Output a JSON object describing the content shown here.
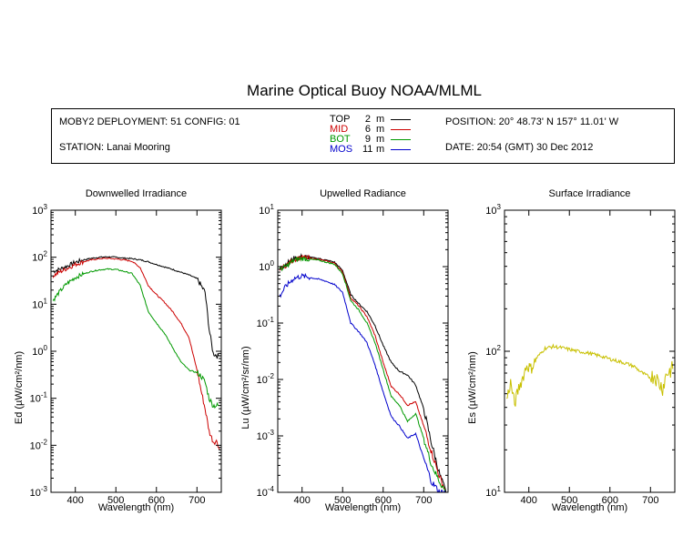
{
  "title": "Marine Optical Buoy NOAA/MLML",
  "info": {
    "deployment": "MOBY2 DEPLOYMENT: 51 CONFIG: 01",
    "station": "STATION: Lanai Mooring",
    "position": "POSITION: 20° 48.73' N   157° 11.01' W",
    "date": "DATE: 20:54 (GMT) 30 Dec 2012",
    "depths": [
      {
        "name": "TOP",
        "depth": "2",
        "unit": "m",
        "color": "#000000"
      },
      {
        "name": "MID",
        "depth": "6",
        "unit": "m",
        "color": "#cc0000"
      },
      {
        "name": "BOT",
        "depth": "9",
        "unit": "m",
        "color": "#009900"
      },
      {
        "name": "MOS",
        "depth": "11",
        "unit": "m",
        "color": "#0000cc"
      }
    ]
  },
  "chart_data": [
    {
      "type": "line",
      "title": "Downwelled Irradiance",
      "xlabel": "Wavelength (nm)",
      "ylabel": "Ed  (µW/cm²/nm)",
      "xlim": [
        340,
        760
      ],
      "xticks": [
        400,
        500,
        600,
        700
      ],
      "ylim": [
        0.001,
        1000
      ],
      "log_y": true,
      "y_tick_exponents": [
        -3,
        -2,
        -1,
        0,
        1,
        2,
        3
      ],
      "series": [
        {
          "name": "TOP",
          "color": "#000000",
          "x": [
            345,
            360,
            380,
            400,
            420,
            440,
            460,
            480,
            500,
            520,
            540,
            560,
            580,
            600,
            620,
            640,
            660,
            680,
            700,
            710,
            720,
            730,
            740,
            750,
            755
          ],
          "y": [
            50,
            55,
            65,
            78,
            88,
            95,
            100,
            102,
            100,
            96,
            93,
            88,
            80,
            70,
            62,
            55,
            48,
            42,
            35,
            25,
            18,
            3,
            0.9,
            0.8,
            0.8
          ]
        },
        {
          "name": "MID",
          "color": "#cc0000",
          "x": [
            345,
            360,
            380,
            400,
            420,
            440,
            460,
            480,
            500,
            520,
            540,
            560,
            580,
            600,
            620,
            640,
            660,
            680,
            700,
            710,
            720,
            730,
            740,
            750,
            755
          ],
          "y": [
            40,
            48,
            58,
            70,
            80,
            88,
            93,
            95,
            92,
            88,
            82,
            60,
            25,
            16,
            11,
            7,
            4,
            2,
            0.4,
            0.15,
            0.06,
            0.02,
            0.012,
            0.012,
            0.008
          ]
        },
        {
          "name": "BOT",
          "color": "#009900",
          "x": [
            345,
            360,
            380,
            400,
            420,
            440,
            460,
            480,
            500,
            520,
            540,
            560,
            580,
            600,
            620,
            640,
            660,
            680,
            700,
            710,
            720,
            730,
            740,
            750,
            755
          ],
          "y": [
            12,
            18,
            28,
            37,
            44,
            50,
            54,
            56,
            55,
            50,
            45,
            25,
            7,
            4,
            2.4,
            1.2,
            0.6,
            0.4,
            0.35,
            0.3,
            0.22,
            0.1,
            0.07,
            0.07,
            0.07
          ]
        }
      ]
    },
    {
      "type": "line",
      "title": "Upwelled Radiance",
      "xlabel": "Wavelength (nm)",
      "ylabel": "Lu  (µW/cm²/sr/nm)",
      "xlim": [
        340,
        760
      ],
      "xticks": [
        400,
        500,
        600,
        700
      ],
      "ylim": [
        0.0001,
        10
      ],
      "log_y": true,
      "y_tick_exponents": [
        -4,
        -3,
        -2,
        -1,
        0,
        1
      ],
      "series": [
        {
          "name": "TOP",
          "color": "#000000",
          "x": [
            345,
            360,
            380,
            400,
            420,
            440,
            460,
            480,
            500,
            520,
            540,
            560,
            580,
            600,
            620,
            640,
            660,
            680,
            700,
            720,
            740,
            755
          ],
          "y": [
            0.9,
            1.1,
            1.4,
            1.5,
            1.45,
            1.4,
            1.3,
            1.2,
            0.85,
            0.32,
            0.22,
            0.16,
            0.09,
            0.04,
            0.02,
            0.014,
            0.012,
            0.008,
            0.003,
            0.0007,
            0.0002,
            0.0001
          ]
        },
        {
          "name": "MID",
          "color": "#cc0000",
          "x": [
            345,
            360,
            380,
            400,
            420,
            440,
            460,
            480,
            500,
            520,
            540,
            560,
            580,
            600,
            620,
            640,
            660,
            680,
            700,
            720,
            740,
            755
          ],
          "y": [
            0.9,
            1.05,
            1.35,
            1.45,
            1.4,
            1.35,
            1.25,
            1.15,
            0.8,
            0.28,
            0.2,
            0.13,
            0.06,
            0.02,
            0.0075,
            0.0055,
            0.0035,
            0.004,
            0.0015,
            0.0005,
            0.00018,
            0.0001
          ]
        },
        {
          "name": "BOT",
          "color": "#009900",
          "x": [
            345,
            360,
            380,
            400,
            420,
            440,
            460,
            480,
            500,
            520,
            540,
            560,
            580,
            600,
            620,
            640,
            660,
            680,
            700,
            720,
            740,
            755
          ],
          "y": [
            0.9,
            1.0,
            1.3,
            1.4,
            1.35,
            1.3,
            1.2,
            1.1,
            0.75,
            0.25,
            0.17,
            0.1,
            0.045,
            0.015,
            0.005,
            0.0035,
            0.0018,
            0.0025,
            0.0009,
            0.0003,
            0.00015,
            0.0001
          ]
        },
        {
          "name": "MOS",
          "color": "#0000cc",
          "x": [
            345,
            360,
            380,
            400,
            420,
            440,
            460,
            480,
            500,
            520,
            540,
            560,
            580,
            600,
            620,
            640,
            660,
            680,
            700,
            720,
            740,
            755
          ],
          "y": [
            0.3,
            0.45,
            0.62,
            0.68,
            0.64,
            0.6,
            0.55,
            0.48,
            0.35,
            0.1,
            0.07,
            0.045,
            0.018,
            0.006,
            0.0022,
            0.0015,
            0.0009,
            0.0011,
            0.0004,
            0.00015,
            0.0001,
            0.0001
          ]
        }
      ]
    },
    {
      "type": "line",
      "title": "Surface Irradiance",
      "xlabel": "Wavelength (nm)",
      "ylabel": "Es  (µW/cm²/nm)",
      "xlim": [
        340,
        760
      ],
      "xticks": [
        400,
        500,
        600,
        700
      ],
      "ylim": [
        10,
        1000
      ],
      "log_y": true,
      "y_tick_exponents": [
        1,
        2,
        3
      ],
      "series": [
        {
          "name": "Es",
          "color": "#c8c000",
          "x": [
            345,
            355,
            365,
            375,
            385,
            395,
            405,
            420,
            440,
            460,
            480,
            500,
            520,
            540,
            560,
            580,
            600,
            620,
            640,
            660,
            680,
            700,
            710,
            720,
            730,
            740,
            755
          ],
          "y": [
            45,
            60,
            42,
            55,
            65,
            80,
            75,
            90,
            105,
            108,
            106,
            103,
            100,
            98,
            95,
            92,
            88,
            85,
            82,
            78,
            70,
            65,
            68,
            60,
            55,
            70,
            75
          ]
        }
      ]
    }
  ]
}
